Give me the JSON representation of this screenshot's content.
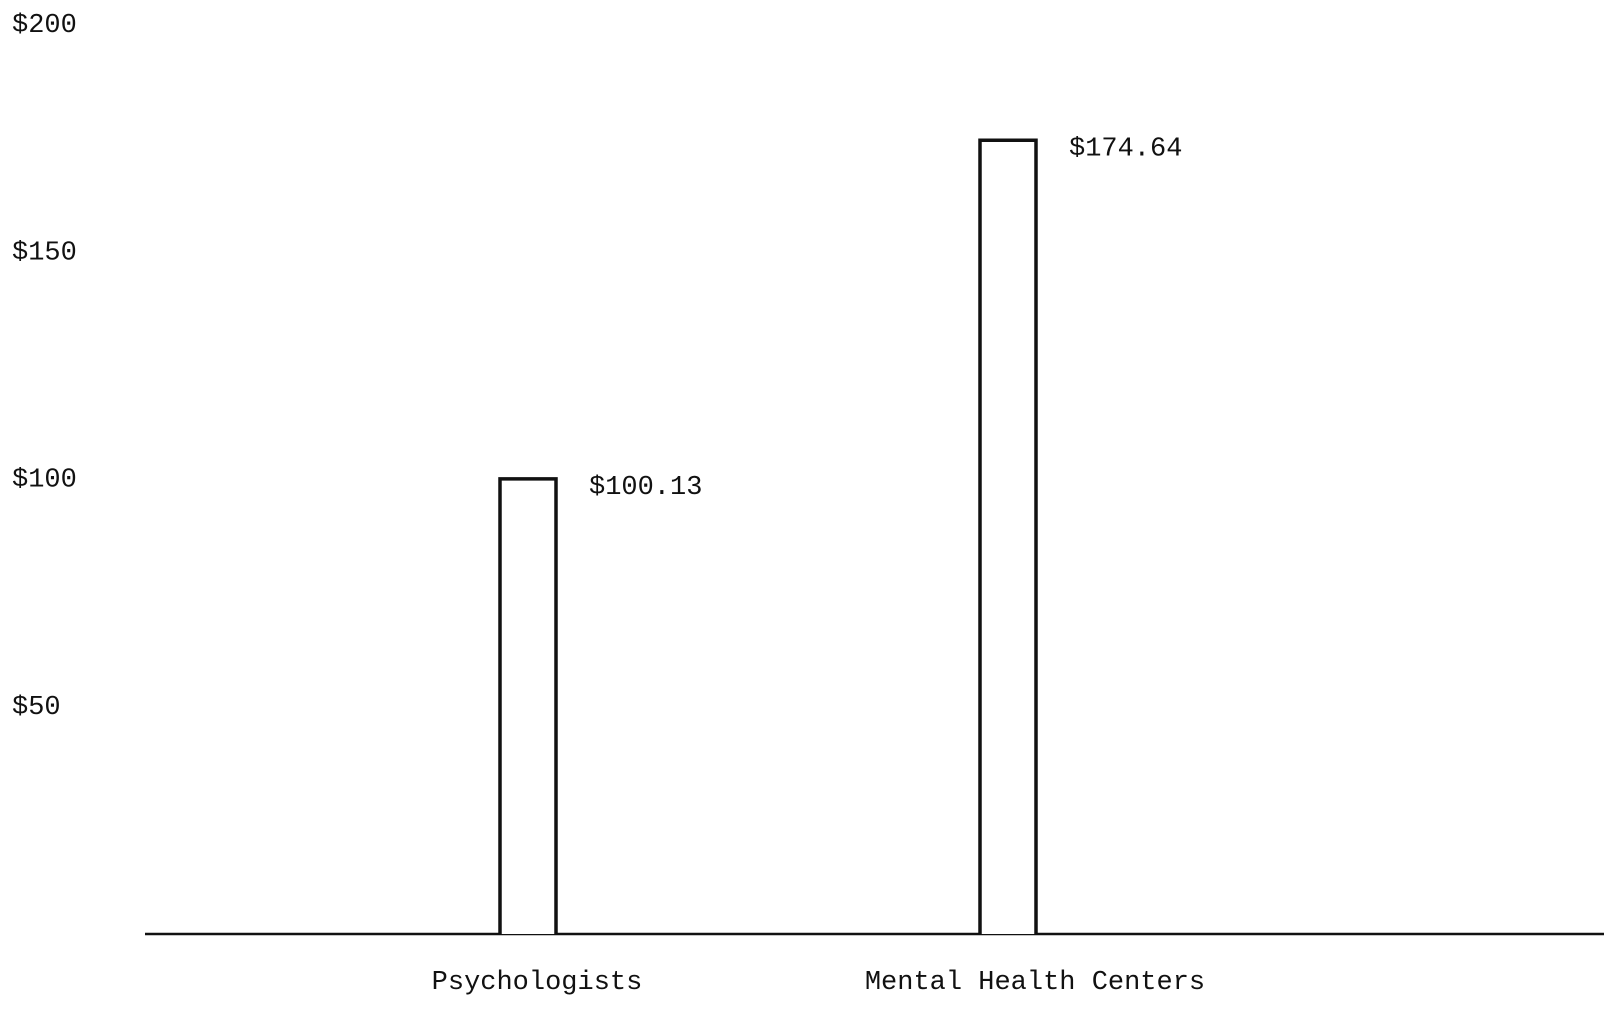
{
  "chart_data": {
    "type": "bar",
    "categories": [
      "Psychologists",
      "Mental Health Centers"
    ],
    "values": [
      100.13,
      174.64
    ],
    "value_labels": [
      "$100.13",
      "$174.64"
    ],
    "color": "#111111",
    "ylim": [
      0,
      200
    ],
    "yticks": [
      {
        "value": 50,
        "label": "$50"
      },
      {
        "value": 100,
        "label": "$100"
      },
      {
        "value": 150,
        "label": "$150"
      },
      {
        "value": 200,
        "label": "$200"
      }
    ]
  }
}
